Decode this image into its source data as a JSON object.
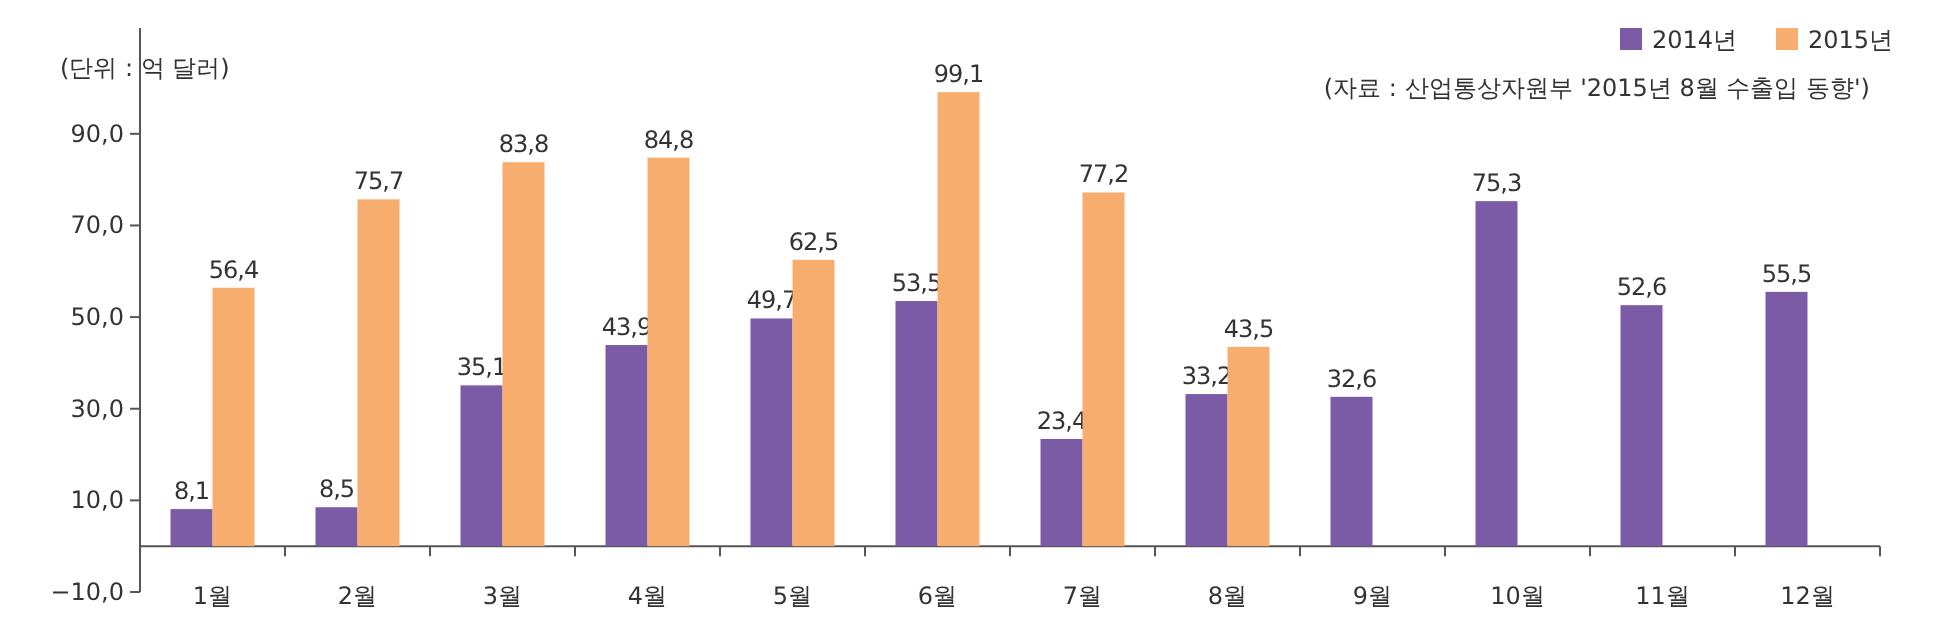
{
  "chart_data": {
    "type": "bar",
    "categories": [
      "1월",
      "2월",
      "3월",
      "4월",
      "5월",
      "6월",
      "7월",
      "8월",
      "9월",
      "10월",
      "11월",
      "12월"
    ],
    "series": [
      {
        "name": "2014년",
        "color": "#7b5aa6",
        "values": [
          8.1,
          8.5,
          35.1,
          43.9,
          49.7,
          53.5,
          23.4,
          33.2,
          32.6,
          75.3,
          52.6,
          55.5
        ],
        "value_labels": [
          "8,1",
          "8,5",
          "35,1",
          "43,9",
          "49,7",
          "53,5",
          "23,4",
          "33,2",
          "32,6",
          "75,3",
          "52,6",
          "55,5"
        ]
      },
      {
        "name": "2015년",
        "color": "#f6ad6e",
        "values": [
          56.4,
          75.7,
          83.8,
          84.8,
          62.5,
          99.1,
          77.2,
          43.5,
          null,
          null,
          null,
          null
        ],
        "value_labels": [
          "56,4",
          "75,7",
          "83,8",
          "84,8",
          "62,5",
          "99,1",
          "77,2",
          "43,5",
          null,
          null,
          null,
          null
        ]
      }
    ],
    "ylim": [
      -10,
      100
    ],
    "yticks": [
      {
        "value": -10,
        "label": "−10,0"
      },
      {
        "value": 10,
        "label": "10,0"
      },
      {
        "value": 30,
        "label": "30,0"
      },
      {
        "value": 50,
        "label": "50,0"
      },
      {
        "value": 70,
        "label": "70,0"
      },
      {
        "value": 90,
        "label": "90,0"
      }
    ],
    "legend": "top right",
    "annotations": [
      "(단위 : 억 달러)",
      "(자료 : 산업통상자원부 '2015년 8월 수출입 동향')"
    ]
  }
}
